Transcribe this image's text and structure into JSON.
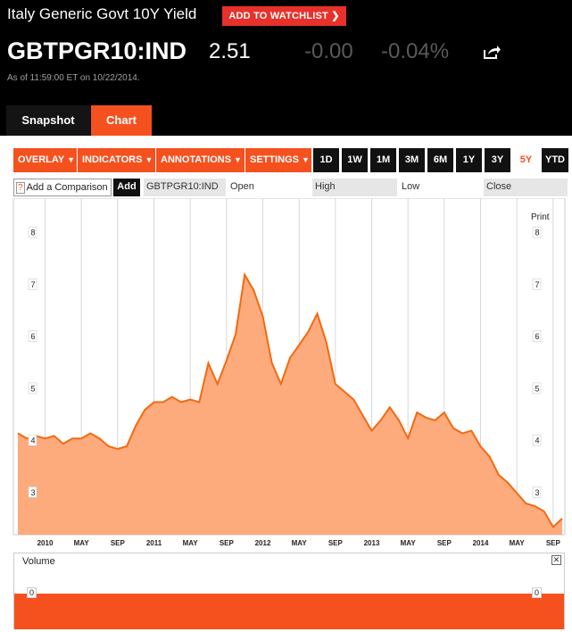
{
  "header": {
    "title": "Italy Generic Govt 10Y Yield",
    "watchlist_label": "ADD TO WATCHLIST",
    "ticker": "GBTPGR10:IND",
    "price": "2.51",
    "change": "-0.00",
    "change_pct": "-0.04%",
    "as_of": "As of 11:59:00 ET on 10/22/2014."
  },
  "tabs": {
    "snapshot": "Snapshot",
    "chart": "Chart"
  },
  "toolbar": {
    "overlay": "OVERLAY",
    "indicators": "INDICATORS",
    "annotations": "ANNOTATIONS",
    "settings": "SETTINGS",
    "ranges": [
      "1D",
      "1W",
      "1M",
      "3M",
      "6M",
      "1Y",
      "3Y",
      "5Y",
      "YTD"
    ],
    "selected_range": "5Y"
  },
  "compare": {
    "help": "?",
    "label": "Add a Comparison",
    "add_label": "Add",
    "symbol": "GBTPGR10:IND",
    "open_label": "Open",
    "high_label": "High",
    "low_label": "Low",
    "close_label": "Close"
  },
  "print_label": "Print",
  "volume": {
    "label": "Volume",
    "close": "✕",
    "tick": "0"
  },
  "colors": {
    "accent": "#f5511f",
    "area": "#fdaa7d",
    "line": "#f26a10"
  },
  "chart_data": {
    "type": "area",
    "x": [
      "2009-10",
      "2009-11",
      "2009-12",
      "2010-01",
      "2010-02",
      "2010-03",
      "2010-04",
      "2010-05",
      "2010-06",
      "2010-07",
      "2010-08",
      "2010-09",
      "2010-10",
      "2010-11",
      "2010-12",
      "2011-01",
      "2011-02",
      "2011-03",
      "2011-04",
      "2011-05",
      "2011-06",
      "2011-07",
      "2011-08",
      "2011-09",
      "2011-10",
      "2011-11",
      "2011-12",
      "2012-01",
      "2012-02",
      "2012-03",
      "2012-04",
      "2012-05",
      "2012-06",
      "2012-07",
      "2012-08",
      "2012-09",
      "2012-10",
      "2012-11",
      "2012-12",
      "2013-01",
      "2013-02",
      "2013-03",
      "2013-04",
      "2013-05",
      "2013-06",
      "2013-07",
      "2013-08",
      "2013-09",
      "2013-10",
      "2013-11",
      "2013-12",
      "2014-01",
      "2014-02",
      "2014-03",
      "2014-04",
      "2014-05",
      "2014-06",
      "2014-07",
      "2014-08",
      "2014-09",
      "2014-10"
    ],
    "values": [
      4.15,
      4.05,
      4.1,
      4.05,
      4.1,
      3.95,
      4.05,
      4.05,
      4.15,
      4.05,
      3.9,
      3.85,
      3.9,
      4.3,
      4.6,
      4.75,
      4.75,
      4.85,
      4.75,
      4.8,
      4.75,
      5.5,
      5.1,
      5.55,
      6.05,
      7.2,
      6.9,
      6.4,
      5.5,
      5.1,
      5.6,
      5.85,
      6.1,
      6.45,
      5.9,
      5.1,
      4.95,
      4.8,
      4.5,
      4.2,
      4.4,
      4.65,
      4.4,
      4.05,
      4.55,
      4.45,
      4.4,
      4.55,
      4.25,
      4.15,
      4.2,
      3.9,
      3.7,
      3.35,
      3.2,
      3.0,
      2.8,
      2.75,
      2.65,
      2.35,
      2.51
    ],
    "x_ticks": [
      "2010",
      "MAY",
      "SEP",
      "2011",
      "MAY",
      "SEP",
      "2012",
      "MAY",
      "SEP",
      "2013",
      "MAY",
      "SEP",
      "2014",
      "MAY",
      "SEP"
    ],
    "y_ticks": [
      "3",
      "4",
      "5",
      "6",
      "7",
      "8"
    ],
    "ylim": [
      2.2,
      8.5
    ],
    "grid": true,
    "legend": "none"
  }
}
